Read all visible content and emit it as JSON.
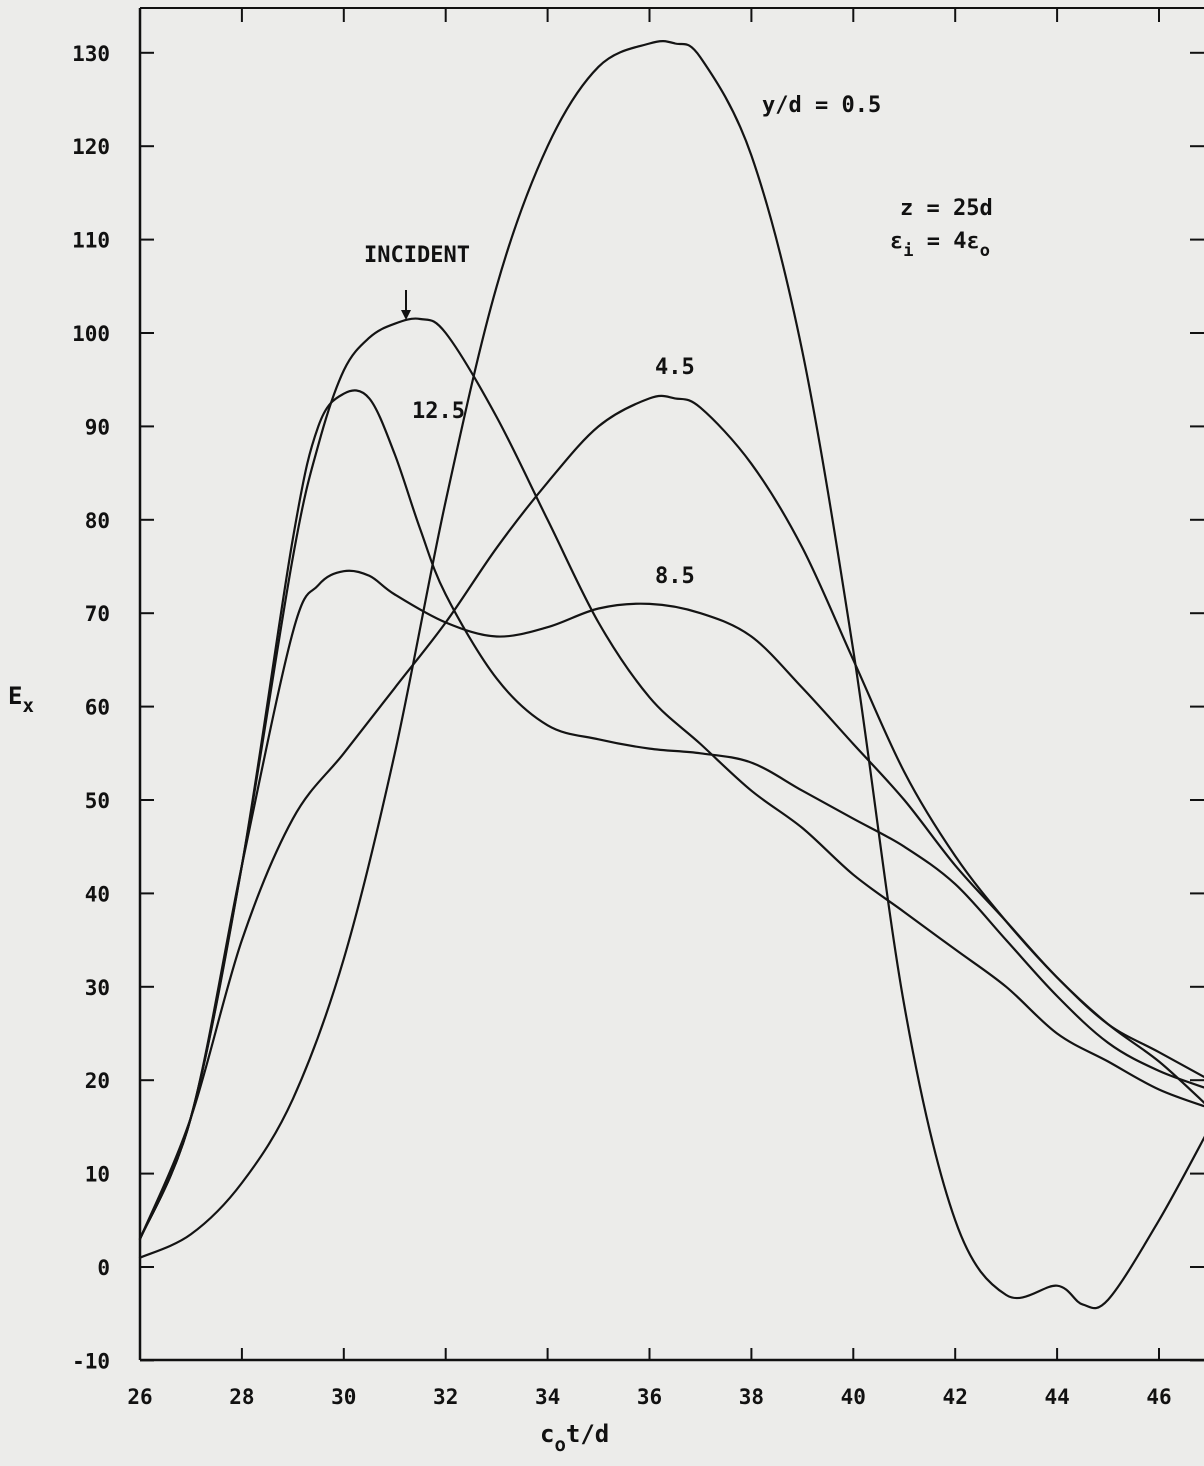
{
  "chart_data": {
    "type": "line",
    "xlabel": {
      "main": "c",
      "sub": "o",
      "rest": "t/d"
    },
    "ylabel": {
      "main": "E",
      "sub": "x"
    },
    "xlim": [
      26,
      47
    ],
    "ylim": [
      -10,
      135
    ],
    "xticks": [
      26,
      28,
      30,
      32,
      34,
      36,
      38,
      40,
      42,
      44,
      46
    ],
    "yticks": [
      -10,
      0,
      10,
      20,
      30,
      40,
      50,
      60,
      70,
      80,
      90,
      100,
      110,
      120,
      130
    ],
    "grid": false,
    "series": [
      {
        "name": "INCIDENT",
        "x": [
          26,
          27,
          28,
          29,
          29.5,
          30,
          30.5,
          31,
          31.5,
          32,
          33,
          34,
          35,
          36,
          37,
          38,
          39,
          40,
          41,
          42,
          43,
          44,
          45,
          46,
          47
        ],
        "y": [
          3,
          16,
          43,
          76,
          88,
          96,
          99.5,
          101,
          101.5,
          100,
          91,
          80,
          69,
          61,
          56,
          51,
          47,
          42,
          38,
          34,
          30,
          25,
          22,
          19,
          17
        ]
      },
      {
        "name": "12.5",
        "x": [
          26,
          27,
          28,
          29,
          29.5,
          30,
          30.5,
          31,
          31.5,
          32,
          33,
          34,
          35,
          36,
          37,
          38,
          39,
          40,
          41,
          42,
          43,
          44,
          45,
          46,
          47
        ],
        "y": [
          3,
          16,
          43,
          78,
          90,
          93.5,
          93,
          87,
          79,
          72,
          63,
          58,
          56.5,
          55.5,
          55,
          54,
          51,
          48,
          45,
          41,
          35,
          29,
          24,
          21,
          19
        ]
      },
      {
        "name": "8.5",
        "x": [
          26,
          27,
          28,
          29,
          29.5,
          30,
          30.5,
          31,
          32,
          33,
          34,
          35,
          36,
          37,
          38,
          39,
          40,
          41,
          42,
          43,
          44,
          45,
          46,
          47
        ],
        "y": [
          3,
          16,
          43,
          68,
          73,
          74.5,
          74,
          72,
          69,
          67.5,
          68.5,
          70.5,
          71,
          70,
          67.5,
          62,
          56,
          50,
          43,
          37,
          31,
          26,
          23,
          20
        ]
      },
      {
        "name": "4.5",
        "x": [
          26,
          27,
          28,
          29,
          30,
          31,
          32,
          33,
          34,
          35,
          36,
          36.5,
          37,
          38,
          39,
          40,
          41,
          42,
          43,
          44,
          45,
          46,
          47
        ],
        "y": [
          3,
          16,
          35,
          48,
          55,
          62,
          69,
          77,
          84,
          90,
          93,
          93,
          92,
          86,
          77,
          65,
          53,
          44,
          37,
          31,
          26,
          22,
          17
        ]
      },
      {
        "name": "y/d = 0.5",
        "x": [
          26,
          27,
          28,
          29,
          30,
          31,
          32,
          33,
          34,
          35,
          36,
          36.5,
          37,
          38,
          39,
          40,
          41,
          42,
          43,
          44,
          44.5,
          45,
          46,
          47
        ],
        "y": [
          1,
          3.5,
          9,
          18,
          33,
          55,
          82,
          105,
          120,
          128.5,
          131,
          131,
          129.5,
          119,
          98,
          66,
          28,
          5,
          -3,
          -2,
          -4,
          -3.5,
          5,
          15
        ]
      }
    ],
    "annotations": {
      "incident_label": "INCIDENT",
      "label_12_5": "12.5",
      "label_8_5": "8.5",
      "label_4_5": "4.5",
      "label_0_5": "y/d = 0.5",
      "param_z": "z = 25d",
      "param_eps": {
        "eps": "ε",
        "sub_i": "i",
        "equals": " = 4ε",
        "sub_o": "o"
      }
    }
  }
}
